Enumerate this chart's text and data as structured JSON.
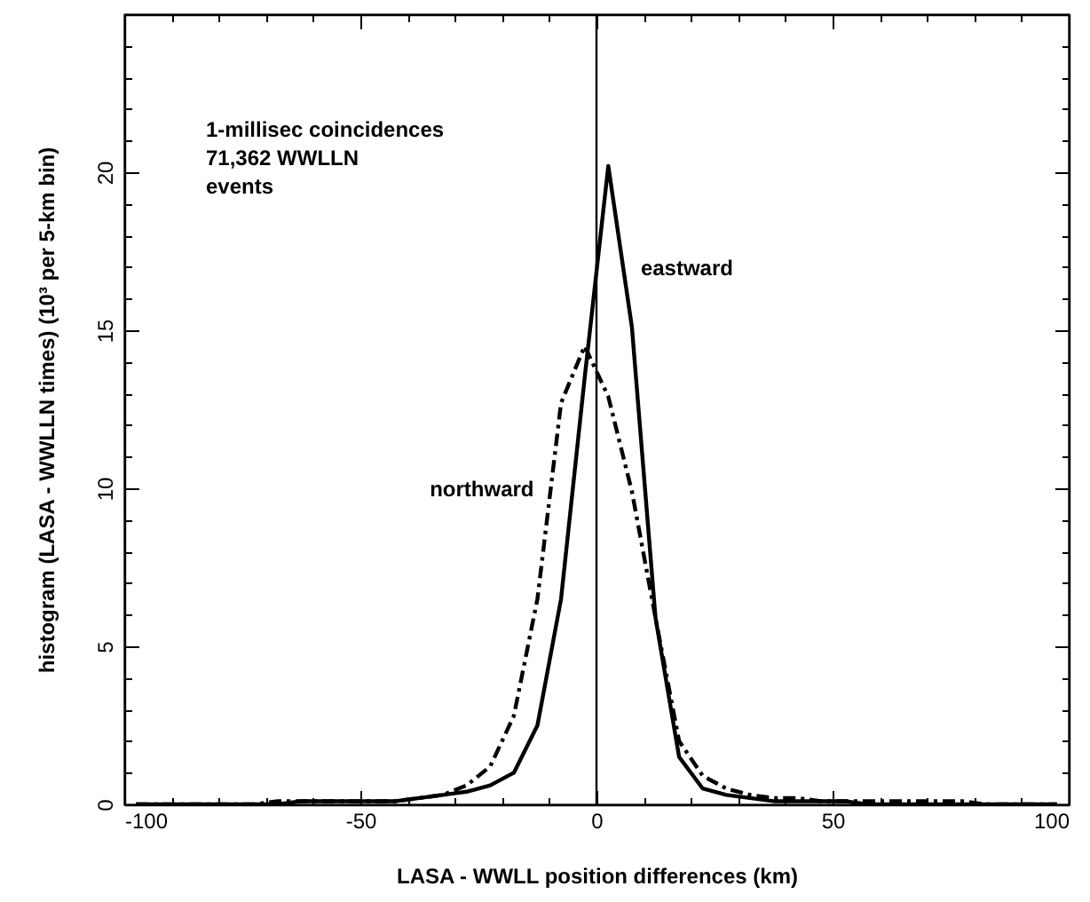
{
  "chart_data": {
    "type": "line",
    "xlabel": "LASA - WWLL position differences (km)",
    "ylabel": "histogram (LASA - WWLLN times) (10³ per 5-km bin)",
    "x": [
      -97.5,
      -92.5,
      -87.5,
      -82.5,
      -77.5,
      -72.5,
      -67.5,
      -62.5,
      -57.5,
      -52.5,
      -47.5,
      -42.5,
      -37.5,
      -32.5,
      -27.5,
      -22.5,
      -17.5,
      -12.5,
      -7.5,
      -2.5,
      2.5,
      7.5,
      12.5,
      17.5,
      22.5,
      27.5,
      32.5,
      37.5,
      42.5,
      47.5,
      52.5,
      57.5,
      62.5,
      67.5,
      72.5,
      77.5,
      82.5,
      87.5,
      92.5,
      97.5
    ],
    "series": [
      {
        "name": "eastward",
        "color": "#000000",
        "line_style": "solid",
        "values": [
          0,
          0,
          0,
          0,
          0,
          0,
          0,
          0.1,
          0.1,
          0.1,
          0.1,
          0.1,
          0.2,
          0.3,
          0.4,
          0.6,
          1.0,
          2.5,
          6.5,
          13.5,
          20.2,
          15.1,
          5.9,
          1.5,
          0.5,
          0.3,
          0.2,
          0.1,
          0.1,
          0.1,
          0.1,
          0,
          0,
          0,
          0,
          0,
          0,
          0,
          0,
          0
        ]
      },
      {
        "name": "northward",
        "color": "#000000",
        "line_style": "dashed",
        "values": [
          0,
          0,
          0,
          0,
          0,
          0,
          0.1,
          0.1,
          0.1,
          0.1,
          0.1,
          0.1,
          0.2,
          0.3,
          0.6,
          1.2,
          2.8,
          6.5,
          12.7,
          14.5,
          12.9,
          9.9,
          5.9,
          2.0,
          0.9,
          0.5,
          0.3,
          0.2,
          0.2,
          0.1,
          0.1,
          0.1,
          0.1,
          0.1,
          0.1,
          0.1,
          0,
          0,
          0,
          0
        ]
      }
    ],
    "xlim": [
      -100,
      100
    ],
    "xticks": [
      -100,
      {
        "value": -90,
        "label": null
      },
      {
        "value": -80,
        "label": null
      },
      {
        "value": -70,
        "label": null
      },
      {
        "value": -60,
        "label": null
      },
      -50,
      {
        "value": -40,
        "label": null
      },
      {
        "value": -30,
        "label": null
      },
      {
        "value": -20,
        "label": null
      },
      {
        "value": -10,
        "label": null
      },
      0,
      {
        "value": 10,
        "label": null
      },
      {
        "value": 20,
        "label": null
      },
      {
        "value": 30,
        "label": null
      },
      {
        "value": 40,
        "label": null
      },
      50,
      {
        "value": 60,
        "label": null
      },
      {
        "value": 70,
        "label": null
      },
      {
        "value": 80,
        "label": null
      },
      {
        "value": 90,
        "label": null
      },
      100
    ],
    "ylim": [
      0,
      25
    ],
    "yticks": [
      0,
      {
        "value": 1,
        "label": null
      },
      {
        "value": 2,
        "label": null
      },
      {
        "value": 3,
        "label": null
      },
      {
        "value": 4,
        "label": null
      },
      5,
      {
        "value": 6,
        "label": null
      },
      {
        "value": 7,
        "label": null
      },
      {
        "value": 8,
        "label": null
      },
      {
        "value": 9,
        "label": null
      },
      10,
      {
        "value": 11,
        "label": null
      },
      {
        "value": 12,
        "label": null
      },
      {
        "value": 13,
        "label": null
      },
      {
        "value": 14,
        "label": null
      },
      15,
      {
        "value": 16,
        "label": null
      },
      {
        "value": 17,
        "label": null
      },
      {
        "value": 18,
        "label": null
      },
      {
        "value": 19,
        "label": null
      },
      20,
      {
        "value": 21,
        "label": null
      },
      {
        "value": 22,
        "label": null
      },
      {
        "value": 23,
        "label": null
      },
      {
        "value": 24,
        "label": null
      },
      {
        "value": 25,
        "label": null
      }
    ],
    "ref_lines": [
      {
        "axis": "x",
        "value": 0,
        "color": "#000000"
      }
    ],
    "annotations": [
      "1-millisec coincidences",
      "71,362 WWLLN",
      "events"
    ],
    "grid": false,
    "marker": "none"
  }
}
